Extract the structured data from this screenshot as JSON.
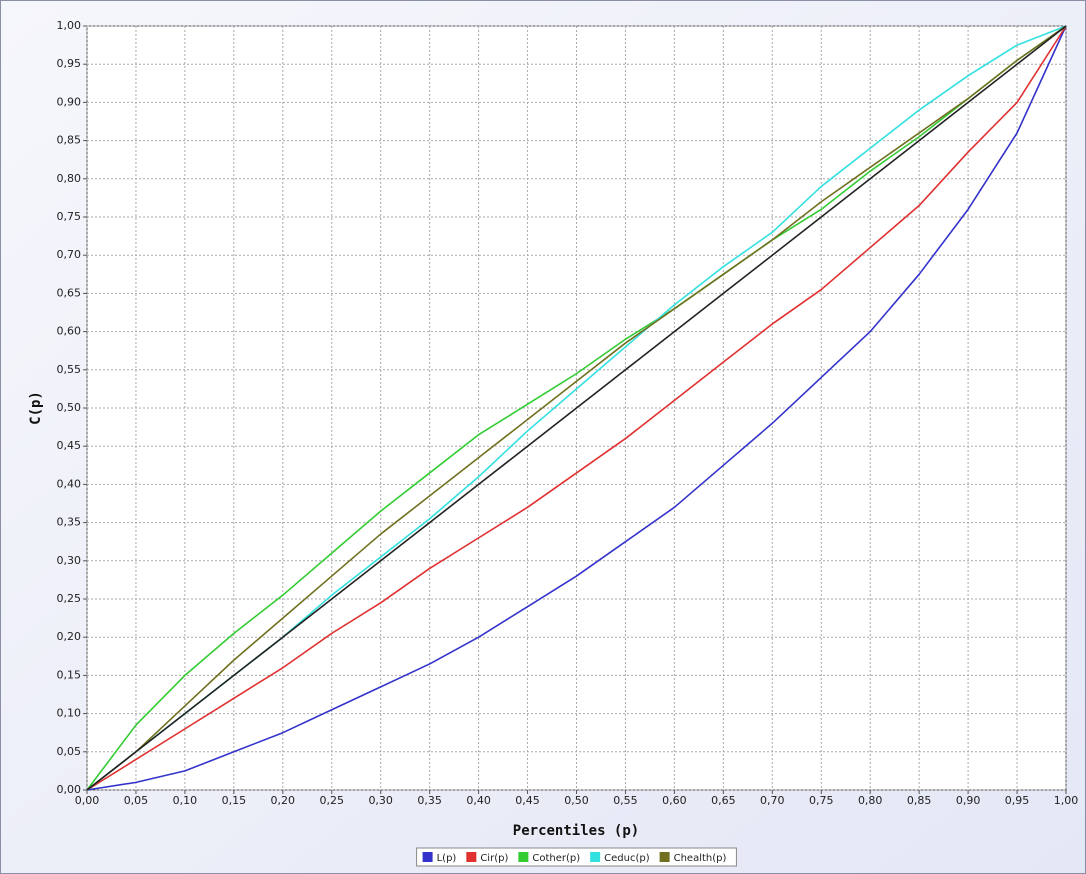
{
  "chart_data": {
    "type": "line",
    "xlabel": "Percentiles (p)",
    "ylabel": "C(p)",
    "x": [
      0,
      0.05,
      0.1,
      0.15,
      0.2,
      0.25,
      0.3,
      0.35,
      0.4,
      0.45,
      0.5,
      0.55,
      0.6,
      0.65,
      0.7,
      0.75,
      0.8,
      0.85,
      0.9,
      0.95,
      1
    ],
    "series": [
      {
        "name": "L(p)",
        "color": "#3333cc",
        "values": [
          0,
          0.01,
          0.025,
          0.05,
          0.075,
          0.105,
          0.135,
          0.165,
          0.2,
          0.24,
          0.28,
          0.325,
          0.37,
          0.425,
          0.48,
          0.54,
          0.6,
          0.675,
          0.76,
          0.86,
          1
        ]
      },
      {
        "name": "Cir(p)",
        "color": "#e03030",
        "values": [
          0,
          0.04,
          0.08,
          0.12,
          0.16,
          0.205,
          0.245,
          0.29,
          0.33,
          0.37,
          0.415,
          0.46,
          0.51,
          0.56,
          0.61,
          0.655,
          0.71,
          0.765,
          0.835,
          0.9,
          1
        ]
      },
      {
        "name": "Cother(p)",
        "color": "#33cc33",
        "values": [
          0,
          0.085,
          0.15,
          0.205,
          0.255,
          0.31,
          0.365,
          0.415,
          0.465,
          0.505,
          0.545,
          0.59,
          0.63,
          0.675,
          0.72,
          0.76,
          0.81,
          0.855,
          0.905,
          0.955,
          1
        ]
      },
      {
        "name": "Ceduc(p)",
        "color": "#33e0e0",
        "values": [
          0,
          0.05,
          0.1,
          0.15,
          0.2,
          0.255,
          0.305,
          0.355,
          0.41,
          0.47,
          0.525,
          0.58,
          0.635,
          0.685,
          0.73,
          0.79,
          0.84,
          0.89,
          0.935,
          0.975,
          1
        ]
      },
      {
        "name": "Chealth(p)",
        "color": "#707020",
        "values": [
          0,
          0.05,
          0.11,
          0.17,
          0.225,
          0.28,
          0.335,
          0.385,
          0.435,
          0.485,
          0.535,
          0.585,
          0.63,
          0.675,
          0.72,
          0.77,
          0.815,
          0.86,
          0.905,
          0.955,
          1
        ]
      },
      {
        "color": "#222222",
        "values": [
          0,
          0.05,
          0.1,
          0.15,
          0.2,
          0.25,
          0.3,
          0.35,
          0.4,
          0.45,
          0.5,
          0.55,
          0.6,
          0.65,
          0.7,
          0.75,
          0.8,
          0.85,
          0.9,
          0.95,
          1
        ]
      }
    ],
    "xlim": [
      0,
      1
    ],
    "ylim": [
      0,
      1
    ],
    "xticks": [
      {
        "value": 0,
        "label": "0,00"
      },
      {
        "value": 0.05,
        "label": "0,05"
      },
      {
        "value": 0.1,
        "label": "0,10"
      },
      {
        "value": 0.15,
        "label": "0,15"
      },
      {
        "value": 0.2,
        "label": "0,20"
      },
      {
        "value": 0.25,
        "label": "0,25"
      },
      {
        "value": 0.3,
        "label": "0,30"
      },
      {
        "value": 0.35,
        "label": "0,35"
      },
      {
        "value": 0.4,
        "label": "0,40"
      },
      {
        "value": 0.45,
        "label": "0,45"
      },
      {
        "value": 0.5,
        "label": "0,50"
      },
      {
        "value": 0.55,
        "label": "0,55"
      },
      {
        "value": 0.6,
        "label": "0,60"
      },
      {
        "value": 0.65,
        "label": "0,65"
      },
      {
        "value": 0.7,
        "label": "0,70"
      },
      {
        "value": 0.75,
        "label": "0,75"
      },
      {
        "value": 0.8,
        "label": "0,80"
      },
      {
        "value": 0.85,
        "label": "0,85"
      },
      {
        "value": 0.9,
        "label": "0,90"
      },
      {
        "value": 0.95,
        "label": "0,95"
      },
      {
        "value": 1,
        "label": "1,00"
      }
    ],
    "yticks": [
      {
        "value": 0,
        "label": "0,00"
      },
      {
        "value": 0.05,
        "label": "0,05"
      },
      {
        "value": 0.1,
        "label": "0,10"
      },
      {
        "value": 0.15,
        "label": "0,15"
      },
      {
        "value": 0.2,
        "label": "0,20"
      },
      {
        "value": 0.25,
        "label": "0,25"
      },
      {
        "value": 0.3,
        "label": "0,30"
      },
      {
        "value": 0.35,
        "label": "0,35"
      },
      {
        "value": 0.4,
        "label": "0,40"
      },
      {
        "value": 0.45,
        "label": "0,45"
      },
      {
        "value": 0.5,
        "label": "0,50"
      },
      {
        "value": 0.55,
        "label": "0,55"
      },
      {
        "value": 0.6,
        "label": "0,60"
      },
      {
        "value": 0.65,
        "label": "0,65"
      },
      {
        "value": 0.7,
        "label": "0,70"
      },
      {
        "value": 0.75,
        "label": "0,75"
      },
      {
        "value": 0.8,
        "label": "0,80"
      },
      {
        "value": 0.85,
        "label": "0,85"
      },
      {
        "value": 0.9,
        "label": "0,90"
      },
      {
        "value": 0.95,
        "label": "0,95"
      },
      {
        "value": 1,
        "label": "1,00"
      }
    ],
    "grid": true,
    "legend": "bottom"
  }
}
